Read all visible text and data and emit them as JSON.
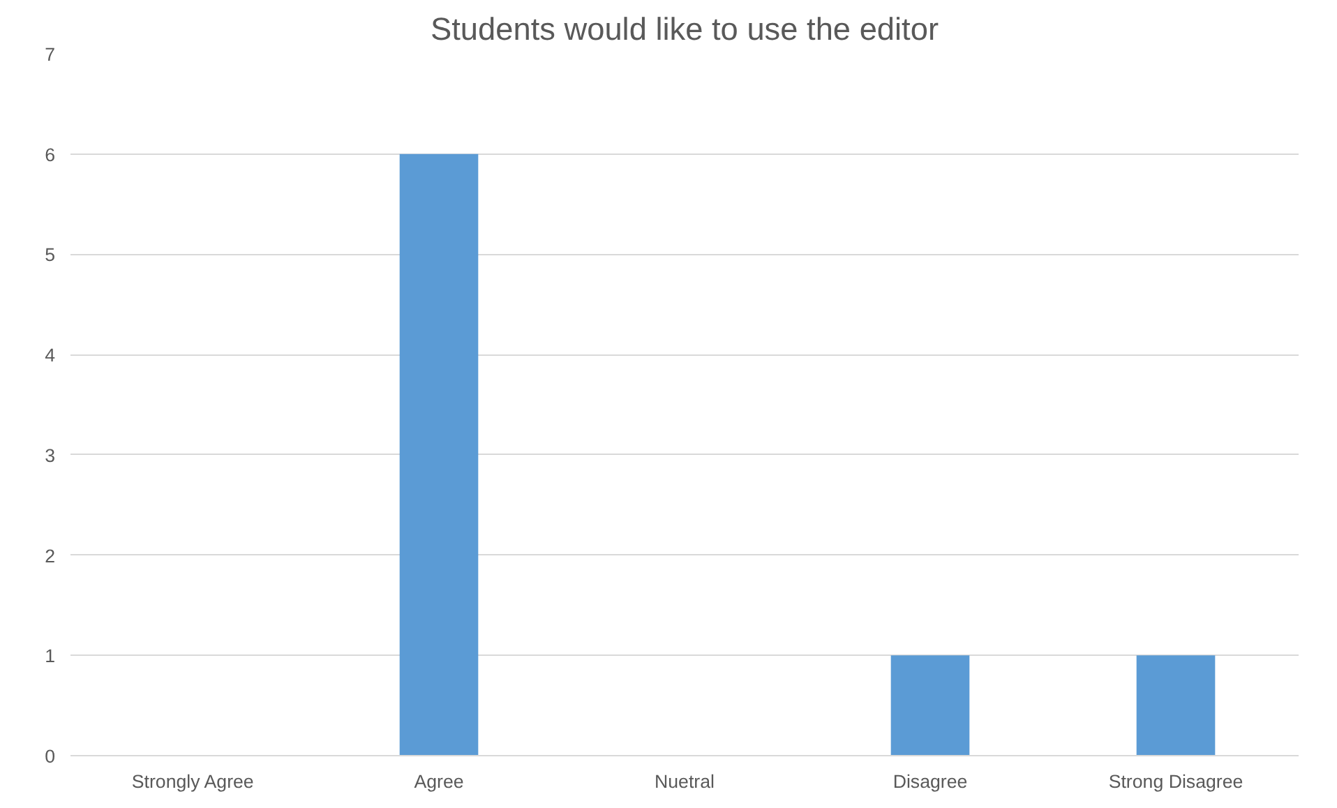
{
  "chart_data": {
    "type": "bar",
    "title": "Students would like to use the editor",
    "categories": [
      "Strongly Agree",
      "Agree",
      "Nuetral",
      "Disagree",
      "Strong Disagree"
    ],
    "values": [
      0,
      6,
      0,
      1,
      1
    ],
    "color": "#5b9bd5",
    "ylim": [
      0,
      7
    ],
    "yticks": [
      0,
      1,
      2,
      3,
      4,
      5,
      6,
      7
    ],
    "grid": "y"
  }
}
